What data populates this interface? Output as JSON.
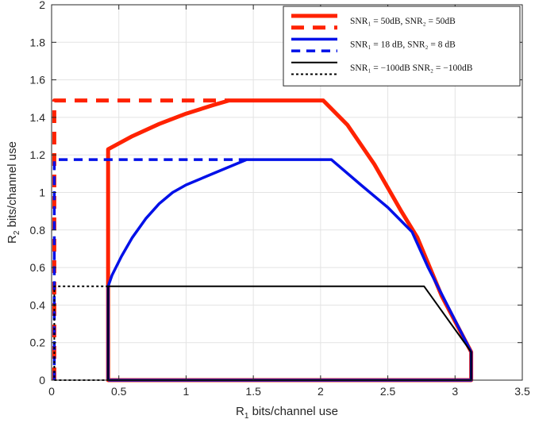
{
  "chart_data": {
    "type": "line",
    "title": "",
    "xlabel": {
      "base": "R",
      "sub": "1",
      "rest": " bits/channel use"
    },
    "ylabel": {
      "base": "R",
      "sub": "2",
      "rest": " bits/channel use"
    },
    "xlim": [
      0,
      3.5
    ],
    "ylim": [
      0,
      2
    ],
    "xticks": [
      0,
      0.5,
      1,
      1.5,
      2,
      2.5,
      3,
      3.5
    ],
    "xtick_labels": [
      "0",
      "0.5",
      "1",
      "1.5",
      "2",
      "2.5",
      "3",
      "3.5"
    ],
    "yticks": [
      0,
      0.2,
      0.4,
      0.6,
      0.8,
      1,
      1.2,
      1.4,
      1.6,
      1.8,
      2
    ],
    "ytick_labels": [
      "0",
      "0.2",
      "0.4",
      "0.6",
      "0.8",
      "1",
      "1.2",
      "1.4",
      "1.6",
      "1.8",
      "2"
    ],
    "grid": true,
    "legend_position": "top-right",
    "legend": [
      {
        "text": "SNR₁ = 50dB, SNR₂ = 50dB",
        "series": 0
      },
      {
        "text": "",
        "series": 1
      },
      {
        "text": "SNR₁ = 18 dB, SNR₂ = 8 dB",
        "series": 2
      },
      {
        "text": "",
        "series": 3
      },
      {
        "text": "SNR₁ = −100dB SNR₂ = −100dB",
        "series": 4
      },
      {
        "text": "",
        "series": 5
      }
    ],
    "series": [
      {
        "color": "#ff2200",
        "dash": "solid",
        "width": 5,
        "x": [
          0.42,
          0.42,
          0.6,
          0.8,
          1.0,
          1.2,
          1.32,
          2.02,
          2.2,
          2.4,
          2.6,
          2.72,
          2.9,
          3.12,
          3.12,
          0.42,
          0.42
        ],
        "y": [
          0,
          1.23,
          1.3,
          1.365,
          1.42,
          1.465,
          1.49,
          1.49,
          1.36,
          1.15,
          0.9,
          0.76,
          0.45,
          0.15,
          0,
          0,
          0.5
        ]
      },
      {
        "color": "#ff2200",
        "dash": "dashed",
        "width": 5,
        "x": [
          0.02,
          0.02,
          1.32
        ],
        "y": [
          0,
          1.49,
          1.49
        ]
      },
      {
        "color": "#0010e8",
        "dash": "solid",
        "width": 3.5,
        "x": [
          0.42,
          0.42,
          0.45,
          0.52,
          0.6,
          0.7,
          0.8,
          0.9,
          1.0,
          1.2,
          1.45,
          2.08,
          2.3,
          2.5,
          2.68,
          2.8,
          3.12,
          3.12,
          0.42
        ],
        "y": [
          0,
          0.5,
          0.56,
          0.66,
          0.76,
          0.86,
          0.94,
          1.0,
          1.04,
          1.1,
          1.175,
          1.175,
          1.04,
          0.92,
          0.79,
          0.6,
          0.15,
          0,
          0
        ]
      },
      {
        "color": "#0010e8",
        "dash": "dashed",
        "width": 3.5,
        "x": [
          0.02,
          0.02,
          1.45
        ],
        "y": [
          0,
          1.175,
          1.175
        ]
      },
      {
        "color": "#000000",
        "dash": "solid",
        "width": 2,
        "x": [
          0.42,
          0.42,
          2.77,
          3.12,
          3.12,
          0.42
        ],
        "y": [
          0,
          0.5,
          0.5,
          0.15,
          0,
          0
        ]
      },
      {
        "color": "#000000",
        "dash": "dotted",
        "width": 2,
        "x": [
          0.42,
          0.02,
          0.02,
          0.42
        ],
        "y": [
          0.5,
          0.5,
          0,
          0
        ]
      }
    ]
  }
}
